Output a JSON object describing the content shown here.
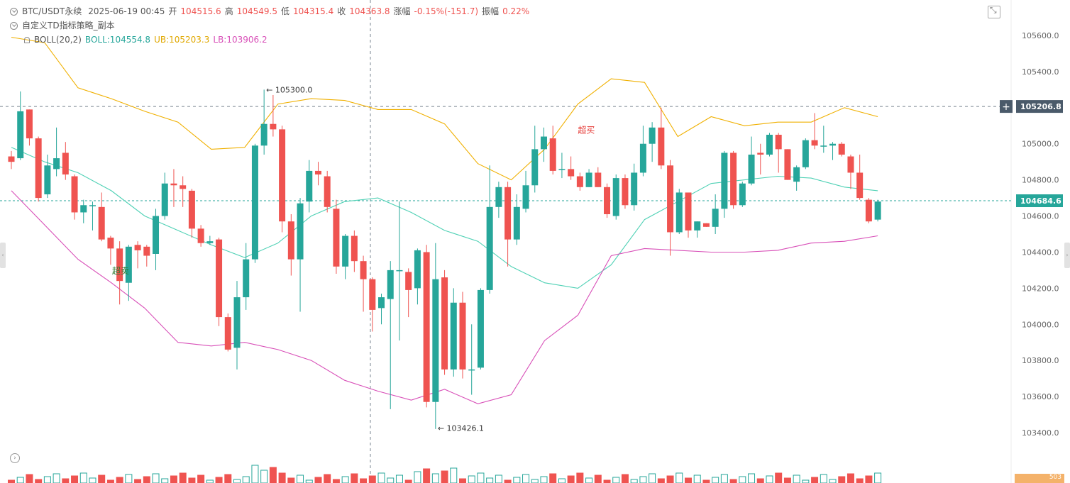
{
  "header": {
    "symbol": "BTC/USDT永续",
    "datetime": "2025-06-19 00:45",
    "open_label": "开",
    "open": "104515.6",
    "high_label": "高",
    "high": "104549.5",
    "low_label": "低",
    "low": "104315.4",
    "close_label": "收",
    "close": "104363.8",
    "change_label": "涨幅",
    "change": "-0.15%(-151.7)",
    "amplitude_label": "振幅",
    "amplitude": "0.22%"
  },
  "strategy": {
    "name": "自定义TD指标策略_副本"
  },
  "boll": {
    "name": "BOLL(20,2)",
    "mid": "BOLL:104554.8",
    "ub": "UB:105203.3",
    "lb": "LB:103906.2"
  },
  "price_axis": {
    "ticks": [
      "105600.0",
      "105400.0",
      "105200.0",
      "105000.0",
      "104800.0",
      "104600.0",
      "104400.0",
      "104200.0",
      "104000.0",
      "103800.0",
      "103600.0",
      "103400.0"
    ],
    "crosshair_label": "105206.8",
    "last_price_label": "104684.6"
  },
  "annotations": {
    "high_marker": "105300.0",
    "low_marker": "103426.1",
    "overbought": "超买",
    "oversold": "超卖"
  },
  "volume": {
    "badge": "503"
  },
  "colors": {
    "up": "#26a69a",
    "down": "#ef5350",
    "mid": "#4fd1b5",
    "ub": "#f0b000",
    "lb": "#d84fb8",
    "last_price": "#26a69a",
    "crosshair": "#4a5a6a"
  },
  "icons": [
    "chevron-circle-icon",
    "bell-icon",
    "fullscreen-icon",
    "crosshair-plus-icon"
  ],
  "chart_data": {
    "type": "candlestick",
    "title": "BTC/USDT永续",
    "ylim": [
      103300,
      105700
    ],
    "candles": [
      [
        104930,
        104900,
        104960,
        104860
      ],
      [
        104920,
        105180,
        105290,
        104910
      ],
      [
        105190,
        105030,
        105190,
        104990
      ],
      [
        105030,
        104700,
        105040,
        104680
      ],
      [
        104720,
        104880,
        104940,
        104700
      ],
      [
        104860,
        104920,
        105090,
        104820
      ],
      [
        104950,
        104830,
        105010,
        104800
      ],
      [
        104820,
        104620,
        104830,
        104580
      ],
      [
        104620,
        104660,
        104690,
        104560
      ],
      [
        104660,
        104660,
        104680,
        104520
      ],
      [
        104650,
        104470,
        104730,
        104460
      ],
      [
        104480,
        104420,
        104490,
        104330
      ],
      [
        104420,
        104240,
        104460,
        104110
      ],
      [
        104230,
        104430,
        104440,
        104130
      ],
      [
        104440,
        104410,
        104460,
        104310
      ],
      [
        104430,
        104380,
        104440,
        104320
      ],
      [
        104390,
        104600,
        104640,
        104300
      ],
      [
        104600,
        104780,
        104840,
        104580
      ],
      [
        104780,
        104770,
        104860,
        104650
      ],
      [
        104770,
        104750,
        104820,
        104650
      ],
      [
        104740,
        104530,
        104750,
        104480
      ],
      [
        104530,
        104450,
        104550,
        104430
      ],
      [
        104450,
        104460,
        104490,
        104440
      ],
      [
        104470,
        104040,
        104480,
        103990
      ],
      [
        104040,
        103860,
        104060,
        103850
      ],
      [
        103870,
        104150,
        104240,
        103750
      ],
      [
        104150,
        104360,
        104450,
        104080
      ],
      [
        104360,
        104990,
        105000,
        104340
      ],
      [
        104990,
        105110,
        105300,
        104940
      ],
      [
        105110,
        105080,
        105270,
        105040
      ],
      [
        105080,
        104570,
        105100,
        104510
      ],
      [
        104570,
        104360,
        104610,
        104270
      ],
      [
        104360,
        104670,
        104700,
        104070
      ],
      [
        104680,
        104850,
        104910,
        104620
      ],
      [
        104850,
        104830,
        104900,
        104770
      ],
      [
        104820,
        104650,
        104850,
        104620
      ],
      [
        104640,
        104320,
        104690,
        104280
      ],
      [
        104320,
        104490,
        104500,
        104250
      ],
      [
        104490,
        104350,
        104520,
        104290
      ],
      [
        104350,
        104250,
        104380,
        104070
      ],
      [
        104250,
        104080,
        104260,
        103960
      ],
      [
        104090,
        104150,
        104170,
        104000
      ],
      [
        104140,
        104300,
        104350,
        103530
      ],
      [
        104300,
        104300,
        104680,
        103910
      ],
      [
        104290,
        104190,
        104310,
        104040
      ],
      [
        104200,
        104410,
        104420,
        104110
      ],
      [
        104400,
        103570,
        104440,
        103540
      ],
      [
        103570,
        104250,
        104450,
        103420
      ],
      [
        104260,
        103750,
        104300,
        103720
      ],
      [
        103750,
        104120,
        104200,
        103710
      ],
      [
        104120,
        103750,
        104180,
        103700
      ],
      [
        103750,
        103750,
        104000,
        103610
      ],
      [
        103760,
        104190,
        104200,
        103750
      ],
      [
        104190,
        104650,
        104880,
        104170
      ],
      [
        104650,
        104760,
        104790,
        104590
      ],
      [
        104760,
        104470,
        104790,
        104320
      ],
      [
        104470,
        104650,
        104720,
        104440
      ],
      [
        104640,
        104770,
        104850,
        104620
      ],
      [
        104770,
        104970,
        105100,
        104730
      ],
      [
        104970,
        105040,
        105090,
        104900
      ],
      [
        105030,
        104850,
        105100,
        104830
      ],
      [
        104860,
        104860,
        104950,
        104810
      ],
      [
        104860,
        104820,
        104930,
        104800
      ],
      [
        104820,
        104760,
        104840,
        104740
      ],
      [
        104760,
        104840,
        104860,
        104760
      ],
      [
        104840,
        104760,
        104870,
        104760
      ],
      [
        104760,
        104610,
        104780,
        104590
      ],
      [
        104600,
        104810,
        104830,
        104580
      ],
      [
        104810,
        104660,
        104830,
        104640
      ],
      [
        104660,
        104840,
        104890,
        104630
      ],
      [
        104840,
        105000,
        105100,
        104820
      ],
      [
        105000,
        105090,
        105120,
        104900
      ],
      [
        105090,
        104880,
        105200,
        104860
      ],
      [
        104880,
        104510,
        104910,
        104380
      ],
      [
        104510,
        104730,
        104750,
        104500
      ],
      [
        104730,
        104520,
        104730,
        104480
      ],
      [
        104520,
        104570,
        104570,
        104480
      ],
      [
        104560,
        104540,
        104560,
        104540
      ],
      [
        104540,
        104640,
        104720,
        104500
      ],
      [
        104640,
        104950,
        104960,
        104590
      ],
      [
        104950,
        104660,
        104960,
        104640
      ],
      [
        104660,
        104780,
        104790,
        104650
      ],
      [
        104780,
        104940,
        105040,
        104770
      ],
      [
        104950,
        104940,
        105000,
        104830
      ],
      [
        104940,
        105050,
        105060,
        104930
      ],
      [
        105050,
        104970,
        105060,
        104840
      ],
      [
        104970,
        104800,
        104970,
        104800
      ],
      [
        104790,
        104870,
        104880,
        104740
      ],
      [
        104870,
        105020,
        105030,
        104860
      ],
      [
        105020,
        104990,
        105170,
        104970
      ],
      [
        104990,
        104990,
        105100,
        104950
      ],
      [
        104990,
        105000,
        105010,
        104910
      ],
      [
        105000,
        104940,
        105010,
        104930
      ],
      [
        104930,
        104840,
        104940,
        104750
      ],
      [
        104840,
        104700,
        104940,
        104690
      ],
      [
        104690,
        104570,
        104700,
        104560
      ],
      [
        104580,
        104680,
        104690,
        104570
      ]
    ],
    "boll_mid": [
      104980,
      104900,
      104840,
      104740,
      104600,
      104520,
      104440,
      104370,
      104450,
      104600,
      104680,
      104700,
      104620,
      104520,
      104460,
      104320,
      104230,
      104200,
      104330,
      104580,
      104680,
      104780,
      104800,
      104820,
      104810,
      104760,
      104740
    ],
    "boll_ub": [
      105590,
      105560,
      105310,
      105250,
      105180,
      105120,
      104970,
      104980,
      105220,
      105250,
      105240,
      105190,
      105190,
      105110,
      104890,
      104800,
      104970,
      105220,
      105360,
      105340,
      105040,
      105150,
      105100,
      105120,
      105120,
      105200,
      105150
    ],
    "boll_lb": [
      104740,
      104550,
      104360,
      104230,
      104090,
      103900,
      103880,
      103900,
      103860,
      103800,
      103690,
      103630,
      103580,
      103640,
      103560,
      103610,
      103910,
      104050,
      104380,
      104420,
      104410,
      104400,
      104400,
      104410,
      104450,
      104460,
      104490
    ]
  }
}
